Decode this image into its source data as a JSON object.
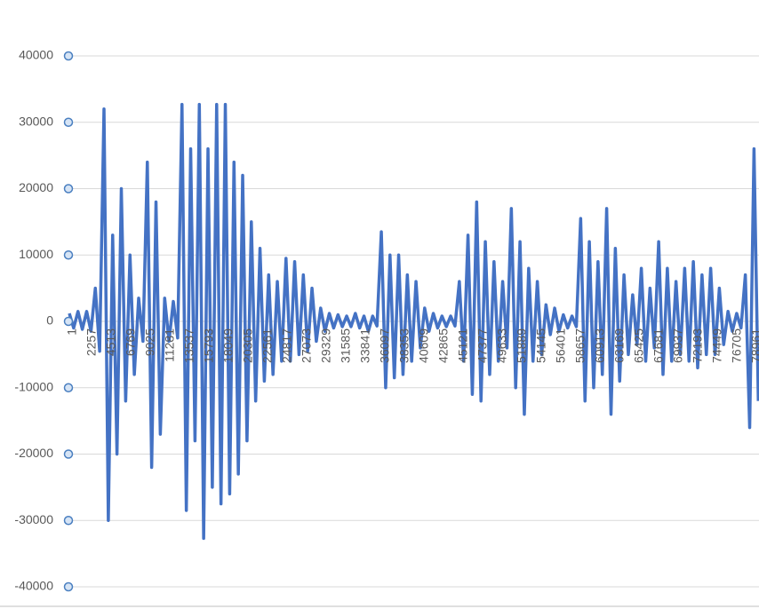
{
  "chart_data": {
    "type": "line",
    "color": "#4472c4",
    "grid": true,
    "xlim": [
      1,
      79577
    ],
    "ylim": [
      -40000,
      40000
    ],
    "yticks": [
      -40000,
      -30000,
      -20000,
      -10000,
      0,
      10000,
      20000,
      30000,
      40000
    ],
    "xticks": [
      1,
      2257,
      4513,
      6769,
      9025,
      11281,
      13537,
      15793,
      18049,
      20305,
      22561,
      24817,
      27073,
      29329,
      31585,
      33841,
      36097,
      38353,
      40609,
      42865,
      45121,
      47377,
      49633,
      51889,
      54145,
      56401,
      58657,
      60913,
      63169,
      65425,
      67681,
      69937,
      72193,
      74449,
      76705,
      78961
    ],
    "x": [
      1,
      501,
      1001,
      1501,
      2001,
      2501,
      3001,
      3501,
      4001,
      4501,
      5001,
      5501,
      6001,
      6501,
      7001,
      7501,
      8001,
      8501,
      9001,
      9501,
      10001,
      10501,
      11001,
      11501,
      12001,
      12501,
      13001,
      13501,
      14001,
      14501,
      15001,
      15501,
      16001,
      16501,
      17001,
      17501,
      18001,
      18501,
      19001,
      19501,
      20001,
      20501,
      21001,
      21501,
      22001,
      22501,
      23001,
      23501,
      24001,
      24501,
      25001,
      25501,
      26001,
      26501,
      27001,
      27501,
      28001,
      28501,
      29001,
      29501,
      30001,
      30501,
      31001,
      31501,
      32001,
      32501,
      33001,
      33501,
      34001,
      34501,
      35001,
      35501,
      36001,
      36501,
      37001,
      37501,
      38001,
      38501,
      39001,
      39501,
      40001,
      40501,
      41001,
      41501,
      42001,
      42501,
      43001,
      43501,
      44001,
      44501,
      45001,
      45501,
      46001,
      46501,
      47001,
      47501,
      48001,
      48501,
      49001,
      49501,
      50001,
      50501,
      51001,
      51501,
      52001,
      52501,
      53001,
      53501,
      54001,
      54501,
      55001,
      55501,
      56001,
      56501,
      57001,
      57501,
      58001,
      58501,
      59001,
      59501,
      60001,
      60501,
      61001,
      61501,
      62001,
      62501,
      63001,
      63501,
      64001,
      64501,
      65001,
      65501,
      66001,
      66501,
      67001,
      67501,
      68001,
      68501,
      69001,
      69501,
      70001,
      70501,
      71001,
      71501,
      72001,
      72501,
      73001,
      73501,
      74001,
      74501,
      75001,
      75501,
      76001,
      76501,
      77001,
      77501,
      78001,
      78501,
      79001,
      79501
    ],
    "values": [
      1200,
      -1000,
      1500,
      -1200,
      1500,
      -1500,
      5000,
      -4500,
      32000,
      -30000,
      13000,
      -20000,
      20000,
      -12000,
      10000,
      -8000,
      3500,
      -3000,
      24000,
      -22000,
      18000,
      -17000,
      3500,
      -3000,
      3000,
      -2500,
      32700,
      -28500,
      26000,
      -18000,
      32700,
      -32700,
      26000,
      -25000,
      32700,
      -27500,
      32700,
      -26000,
      24000,
      -23000,
      22000,
      -18000,
      15000,
      -12000,
      11000,
      -9000,
      7000,
      -8000,
      6000,
      -6000,
      9500,
      -6000,
      9000,
      -5000,
      7000,
      -4500,
      5000,
      -3000,
      2000,
      -1500,
      1200,
      -1000,
      1000,
      -800,
      800,
      -800,
      1200,
      -1000,
      800,
      -1500,
      800,
      -700,
      13500,
      -10000,
      10000,
      -8500,
      10000,
      -8000,
      7000,
      -6000,
      6000,
      -4000,
      2000,
      -1500,
      1200,
      -1000,
      800,
      -800,
      800,
      -700,
      6000,
      -6000,
      13000,
      -11000,
      18000,
      -12000,
      12000,
      -8000,
      9000,
      -6000,
      6000,
      -4000,
      17000,
      -10000,
      12000,
      -14000,
      8000,
      -6000,
      6000,
      -5000,
      2500,
      -2000,
      2000,
      -1500,
      1000,
      -1000,
      800,
      -800,
      15500,
      -12000,
      12000,
      -10000,
      9000,
      -8000,
      17000,
      -14000,
      11000,
      -9000,
      7000,
      -5000,
      4000,
      -3500,
      8000,
      -6000,
      5000,
      -4000,
      12000,
      -8000,
      8000,
      -6000,
      6000,
      -5000,
      8000,
      -6000,
      9000,
      -7000,
      7000,
      -5000,
      8000,
      -5000,
      5000,
      -3500,
      1500,
      -1500,
      1200,
      -1000,
      7000,
      -16000,
      26000,
      -12000
    ]
  }
}
